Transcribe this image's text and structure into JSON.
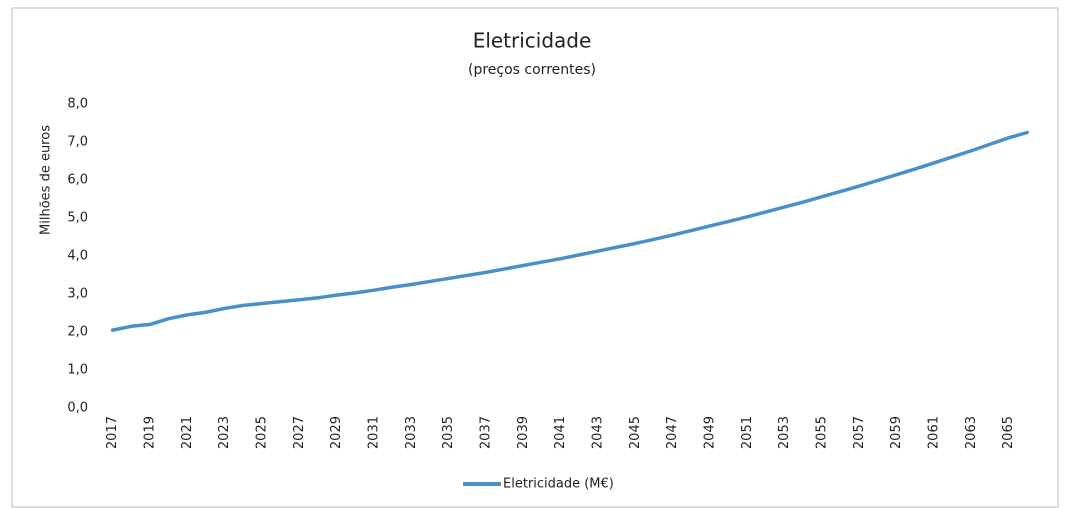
{
  "chart_data": {
    "type": "line",
    "title": "Eletricidade",
    "subtitle": "(preços correntes)",
    "y_label": "Milhões de euros",
    "x": [
      2017,
      2018,
      2019,
      2020,
      2021,
      2022,
      2023,
      2024,
      2025,
      2026,
      2027,
      2028,
      2029,
      2030,
      2031,
      2032,
      2033,
      2034,
      2035,
      2036,
      2037,
      2038,
      2039,
      2040,
      2041,
      2042,
      2043,
      2044,
      2045,
      2046,
      2047,
      2048,
      2049,
      2050,
      2051,
      2052,
      2053,
      2054,
      2055,
      2056,
      2057,
      2058,
      2059,
      2060,
      2061,
      2062,
      2063,
      2064,
      2065,
      2066
    ],
    "series": [
      {
        "name": "Eletricidade (M€)",
        "color": "#4a90c8",
        "values": [
          2.05,
          2.15,
          2.2,
          2.35,
          2.45,
          2.52,
          2.62,
          2.7,
          2.75,
          2.8,
          2.85,
          2.9,
          2.97,
          3.03,
          3.1,
          3.18,
          3.25,
          3.33,
          3.41,
          3.49,
          3.57,
          3.66,
          3.75,
          3.84,
          3.93,
          4.03,
          4.13,
          4.23,
          4.33,
          4.44,
          4.55,
          4.67,
          4.79,
          4.91,
          5.03,
          5.16,
          5.29,
          5.42,
          5.56,
          5.7,
          5.84,
          5.99,
          6.14,
          6.29,
          6.45,
          6.61,
          6.77,
          6.94,
          7.11,
          7.25
        ]
      }
    ],
    "xlim": [
      2016,
      2067
    ],
    "xticks": [
      2017,
      2019,
      2021,
      2023,
      2025,
      2027,
      2029,
      2031,
      2033,
      2035,
      2037,
      2039,
      2041,
      2043,
      2045,
      2047,
      2049,
      2051,
      2053,
      2055,
      2057,
      2059,
      2061,
      2063,
      2065
    ],
    "ylim": [
      0,
      8
    ],
    "yticks": [
      {
        "value": 0,
        "label": "0,0"
      },
      {
        "value": 1,
        "label": "1,0"
      },
      {
        "value": 2,
        "label": "2,0"
      },
      {
        "value": 3,
        "label": "3,0"
      },
      {
        "value": 4,
        "label": "4,0"
      },
      {
        "value": 5,
        "label": "5,0"
      },
      {
        "value": 6,
        "label": "6,0"
      },
      {
        "value": 7,
        "label": "7,0"
      },
      {
        "value": 8,
        "label": "8,0"
      }
    ],
    "grid": false,
    "legend": "bottom"
  }
}
